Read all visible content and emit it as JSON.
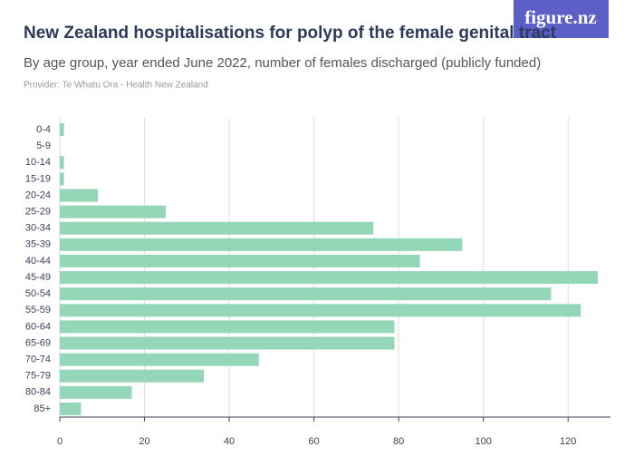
{
  "logo": "figure.nz",
  "chart_data": {
    "type": "bar",
    "orientation": "horizontal",
    "title": "New Zealand hospitalisations for polyp of the female genital tract",
    "subtitle": "By age group, year ended June 2022, number of females discharged (publicly funded)",
    "provider": "Provider: Te Whatu Ora - Health New Zealand",
    "categories": [
      "0-4",
      "5-9",
      "10-14",
      "15-19",
      "20-24",
      "25-29",
      "30-34",
      "35-39",
      "40-44",
      "45-49",
      "50-54",
      "55-59",
      "60-64",
      "65-69",
      "70-74",
      "75-79",
      "80-84",
      "85+"
    ],
    "values": [
      1,
      0,
      1,
      1,
      9,
      25,
      74,
      95,
      85,
      127,
      116,
      123,
      79,
      79,
      47,
      34,
      17,
      5
    ],
    "color": "#93d6b8",
    "xlim": [
      0,
      130
    ],
    "xticks": [
      0,
      20,
      40,
      60,
      80,
      100,
      120
    ],
    "grid": true
  }
}
